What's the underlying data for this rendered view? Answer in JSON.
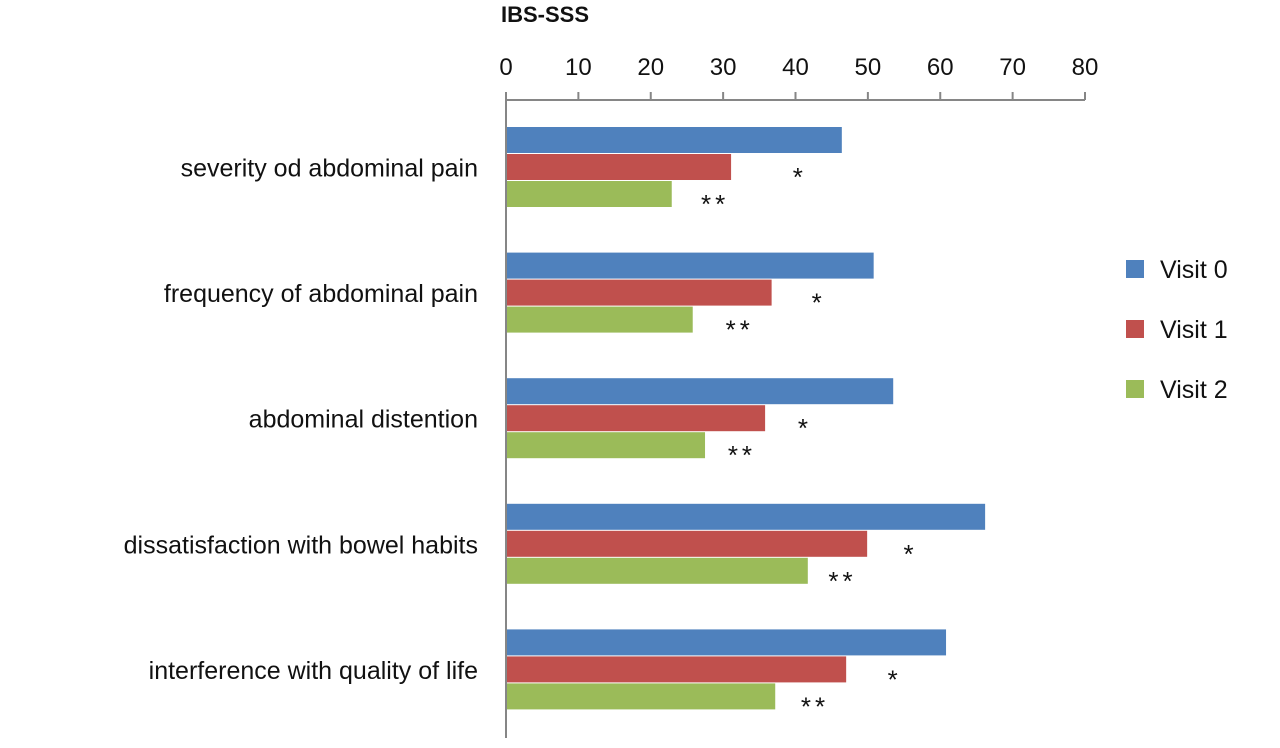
{
  "chart_data": {
    "type": "bar",
    "orientation": "horizontal",
    "title": "IBS-SSS",
    "xlabel": "",
    "ylabel": "",
    "xlim": [
      0,
      80
    ],
    "xticks": [
      0,
      10,
      20,
      30,
      40,
      50,
      60,
      70,
      80
    ],
    "grid": false,
    "legend_position": "right",
    "categories": [
      "severity od abdominal pain",
      "frequency of abdominal pain",
      "abdominal distention",
      "dissatisfaction with bowel habits",
      "interference with quality of life"
    ],
    "series": [
      {
        "name": "Visit 0",
        "color": "#4f81bd",
        "values": [
          46.4,
          50.8,
          53.5,
          66.2,
          60.8
        ]
      },
      {
        "name": "Visit 1",
        "color": "#c0504d",
        "values": [
          31.1,
          36.7,
          35.8,
          49.9,
          47.0
        ]
      },
      {
        "name": "Visit 2",
        "color": "#9bbb59",
        "values": [
          22.9,
          25.8,
          27.5,
          41.7,
          37.2
        ]
      }
    ],
    "annotations": [
      {
        "category": 0,
        "series": 1,
        "text": "*",
        "x": 40.6
      },
      {
        "category": 0,
        "series": 2,
        "text": "**",
        "x": 28.9
      },
      {
        "category": 1,
        "series": 1,
        "text": "*",
        "x": 43.2
      },
      {
        "category": 1,
        "series": 2,
        "text": "**",
        "x": 32.3
      },
      {
        "category": 2,
        "series": 1,
        "text": "*",
        "x": 41.3
      },
      {
        "category": 2,
        "series": 2,
        "text": "**",
        "x": 32.6
      },
      {
        "category": 3,
        "series": 1,
        "text": "*",
        "x": 55.9
      },
      {
        "category": 3,
        "series": 2,
        "text": "**",
        "x": 46.5
      },
      {
        "category": 4,
        "series": 1,
        "text": "*",
        "x": 53.7
      },
      {
        "category": 4,
        "series": 2,
        "text": "**",
        "x": 42.7
      }
    ]
  }
}
